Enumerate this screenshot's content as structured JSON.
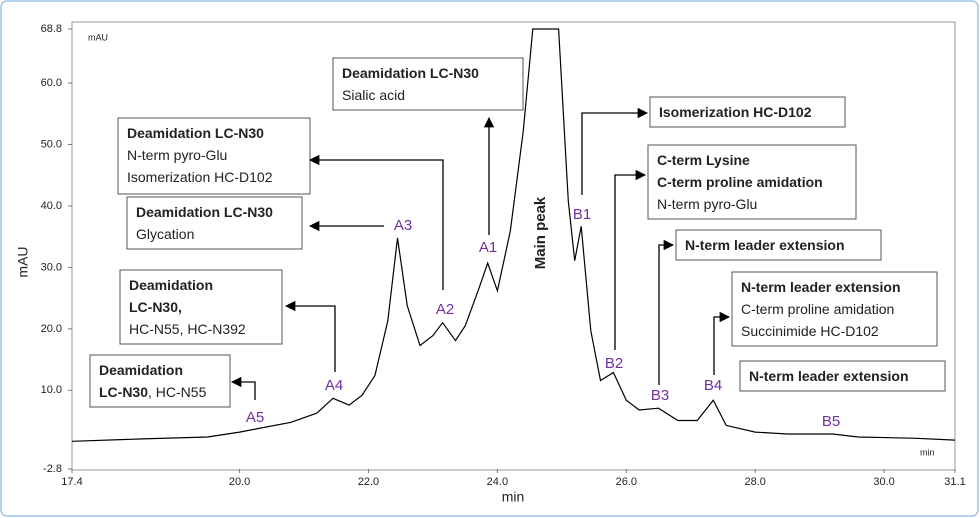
{
  "chart_data": {
    "type": "line",
    "y_label": "mAU",
    "x_label": "min",
    "y_unit_label": "mAU",
    "x_unit_label": "min",
    "main_peak_label": "Main peak",
    "color": "#000000",
    "xlim": [
      17.4,
      31.1
    ],
    "ylim": [
      -2.8,
      68.8
    ],
    "xticks": [
      17.4,
      {
        "value": 20,
        "label": "20.0"
      },
      {
        "value": 22,
        "label": "22.0"
      },
      {
        "value": 24,
        "label": "24.0"
      },
      {
        "value": 26,
        "label": "26.0"
      },
      {
        "value": 28,
        "label": "28.0"
      },
      {
        "value": 30,
        "label": "30.0"
      },
      31.1
    ],
    "yticks": [
      -2.8,
      {
        "value": 10,
        "label": "10.0"
      },
      {
        "value": 20,
        "label": "20.0"
      },
      {
        "value": 30,
        "label": "30.0"
      },
      {
        "value": 40,
        "label": "40.0"
      },
      {
        "value": 50,
        "label": "50.0"
      },
      {
        "value": 60,
        "label": "60.0"
      },
      68.8
    ],
    "x": [
      17.4,
      18.5,
      19.5,
      20.0,
      20.3,
      20.8,
      21.2,
      21.45,
      21.7,
      21.9,
      22.1,
      22.3,
      22.45,
      22.6,
      22.8,
      23.0,
      23.15,
      23.35,
      23.5,
      23.7,
      23.85,
      24.0,
      24.2,
      24.4,
      24.55,
      24.95,
      25.1,
      25.2,
      25.3,
      25.45,
      25.6,
      25.8,
      26.0,
      26.2,
      26.5,
      26.8,
      27.1,
      27.35,
      27.55,
      28.0,
      28.5,
      29.2,
      29.6,
      30.5,
      31.1
    ],
    "values": [
      1.7,
      2.1,
      2.4,
      3.2,
      3.8,
      4.8,
      6.3,
      8.7,
      7.6,
      9.2,
      12.4,
      21.3,
      34.8,
      23.8,
      17.3,
      18.9,
      21.0,
      18.1,
      20.5,
      26.2,
      30.7,
      26.2,
      35.9,
      52.1,
      68.8,
      68.8,
      40.8,
      31.1,
      36.7,
      19.7,
      11.6,
      12.9,
      8.4,
      6.8,
      7.1,
      5.1,
      5.1,
      8.4,
      4.3,
      3.2,
      2.9,
      2.9,
      2.4,
      2.2,
      1.9
    ],
    "peaks": [
      "A5",
      "A4",
      "A3",
      "A2",
      "A1",
      "B1",
      "B2",
      "B3",
      "B4",
      "B5"
    ],
    "annotations": [
      {
        "lines": [
          [
            {
              "text": "Deamidation",
              "bold": true
            }
          ],
          [
            {
              "text": "LC-N30",
              "bold": true
            },
            {
              "text": ", HC-N55",
              "bold": false
            }
          ]
        ]
      },
      {
        "lines": [
          [
            {
              "text": "Deamidation",
              "bold": true
            }
          ],
          [
            {
              "text": "LC-N30,",
              "bold": true
            }
          ],
          [
            {
              "text": "HC-N55, HC-N392",
              "bold": false
            }
          ]
        ]
      },
      {
        "lines": [
          [
            {
              "text": "Deamidation LC-N30",
              "bold": true
            }
          ],
          [
            {
              "text": "Glycation",
              "bold": false
            }
          ]
        ]
      },
      {
        "lines": [
          [
            {
              "text": "Deamidation LC-N30",
              "bold": true
            }
          ],
          [
            {
              "text": "N-term pyro-Glu",
              "bold": false
            }
          ],
          [
            {
              "text": "Isomerization HC-D102",
              "bold": false
            }
          ]
        ]
      },
      {
        "lines": [
          [
            {
              "text": "Deamidation LC-N30",
              "bold": true
            }
          ],
          [
            {
              "text": "Sialic acid",
              "bold": false
            }
          ]
        ]
      },
      {
        "lines": [
          [
            {
              "text": "Isomerization HC-D102",
              "bold": true
            }
          ]
        ]
      },
      {
        "lines": [
          [
            {
              "text": "C-term Lysine",
              "bold": true
            }
          ],
          [
            {
              "text": "C-term proline amidation",
              "bold": true
            }
          ],
          [
            {
              "text": "N-term pyro-Glu",
              "bold": false
            }
          ]
        ]
      },
      {
        "lines": [
          [
            {
              "text": "N-term leader extension",
              "bold": true
            }
          ]
        ]
      },
      {
        "lines": [
          [
            {
              "text": "N-term leader extension",
              "bold": true
            }
          ],
          [
            {
              "text": "C-term proline amidation",
              "bold": false
            }
          ],
          [
            {
              "text": "Succinimide HC-D102",
              "bold": false
            }
          ]
        ]
      },
      {
        "lines": [
          [
            {
              "text": "N-term leader extension",
              "bold": true
            }
          ]
        ]
      }
    ]
  }
}
